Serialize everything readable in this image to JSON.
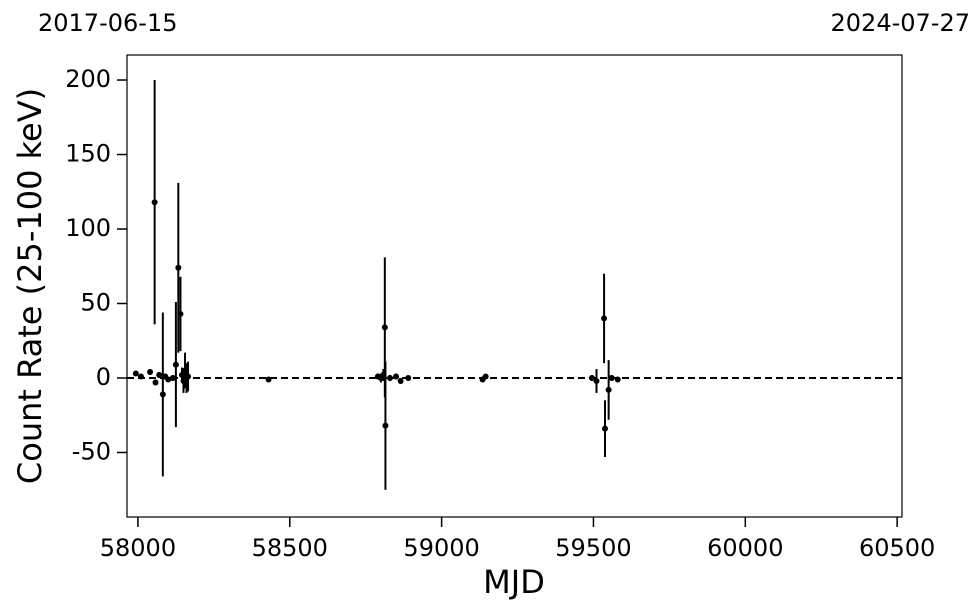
{
  "chart_data": {
    "type": "scatter",
    "xlabel": "MJD",
    "ylabel": "Count Rate (25-100 keV)",
    "annotations": {
      "top_left": "2017-06-15",
      "top_right": "2024-07-27"
    },
    "xlim": [
      57964,
      60516
    ],
    "ylim": [
      -93.3,
      216.8
    ],
    "xticks": [
      58000,
      58500,
      59000,
      59500,
      60000,
      60500
    ],
    "yticks": [
      -50,
      0,
      50,
      100,
      150,
      200
    ],
    "hline": 0,
    "series": [
      {
        "color": "#000000",
        "x": [
          57993,
          58010,
          58040,
          58055,
          58058,
          58070,
          58082,
          58090,
          58100,
          58115,
          58125,
          58133,
          58140,
          58145,
          58150,
          58155,
          58160,
          58165,
          58430,
          58790,
          58800,
          58808,
          58813,
          58815,
          58830,
          58850,
          58865,
          58890,
          59135,
          59145,
          59495,
          59510,
          59535,
          59538,
          59550,
          59560,
          59580
        ],
        "values": [
          3,
          1,
          4,
          118,
          -3,
          2,
          -11,
          1,
          -1,
          0,
          9,
          74,
          43,
          2,
          -2,
          5,
          0,
          1,
          -1,
          1,
          0,
          2,
          34,
          -32,
          0,
          1,
          -2,
          0,
          -1,
          1,
          0,
          -2,
          40,
          -34,
          -8,
          0,
          -1
        ],
        "errors": [
          1,
          1,
          2,
          82,
          2,
          2,
          55,
          2,
          1,
          2,
          42,
          57,
          25,
          5,
          8,
          12,
          10,
          10,
          1,
          2,
          3,
          4,
          47,
          43,
          2,
          2,
          2,
          1,
          2,
          1,
          2,
          8,
          30,
          19,
          20,
          2,
          1
        ]
      }
    ]
  }
}
